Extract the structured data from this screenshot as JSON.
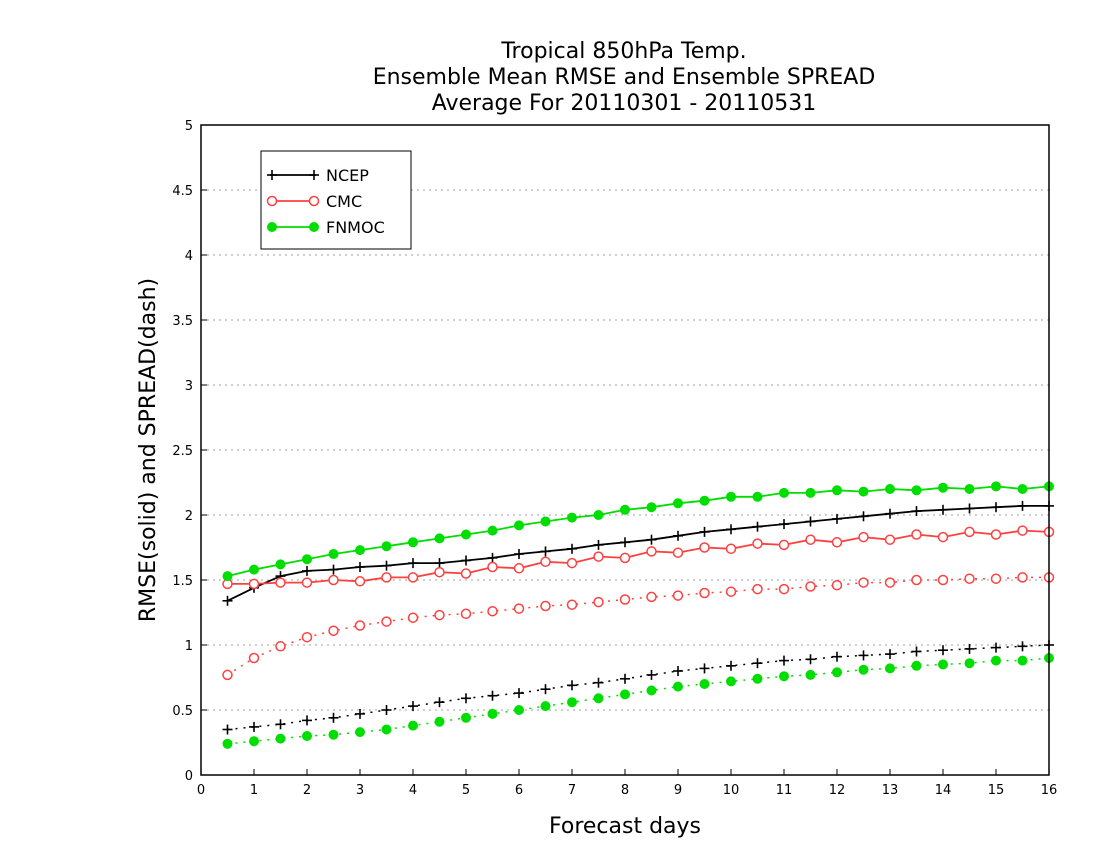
{
  "chart_data": {
    "type": "line",
    "title_lines": [
      "Tropical 850hPa Temp.",
      "Ensemble Mean RMSE and Ensemble SPREAD",
      "Average For 20110301 - 20110531"
    ],
    "xlabel": "Forecast days",
    "ylabel": "RMSE(solid) and SPREAD(dash)",
    "xlim": [
      0,
      16
    ],
    "ylim": [
      0,
      5
    ],
    "xticks": [
      0,
      1,
      2,
      3,
      4,
      5,
      6,
      7,
      8,
      9,
      10,
      11,
      12,
      13,
      14,
      15,
      16
    ],
    "xtick_labels": [
      "0",
      "1",
      "2",
      "3",
      "4",
      "5",
      "6",
      "7",
      "8",
      "9",
      "10",
      "11",
      "12",
      "13",
      "14",
      "15",
      "16"
    ],
    "yticks": [
      0,
      0.5,
      1,
      1.5,
      2,
      2.5,
      3,
      3.5,
      4,
      4.5,
      5
    ],
    "ytick_labels": [
      "0",
      "0.5",
      "1",
      "1.5",
      "2",
      "2.5",
      "3",
      "3.5",
      "4",
      "4.5",
      "5"
    ],
    "grid": "horizontal dotted",
    "legend_position": "top-left",
    "x": [
      0.5,
      1,
      1.5,
      2,
      2.5,
      3,
      3.5,
      4,
      4.5,
      5,
      5.5,
      6,
      6.5,
      7,
      7.5,
      8,
      8.5,
      9,
      9.5,
      10,
      10.5,
      11,
      11.5,
      12,
      12.5,
      13,
      13.5,
      14,
      14.5,
      15,
      15.5,
      16
    ],
    "series": [
      {
        "name": "NCEP",
        "color": "#000000",
        "marker": "plus",
        "rmse": [
          1.34,
          1.44,
          1.53,
          1.57,
          1.58,
          1.6,
          1.61,
          1.63,
          1.63,
          1.65,
          1.67,
          1.7,
          1.72,
          1.74,
          1.77,
          1.79,
          1.81,
          1.84,
          1.87,
          1.89,
          1.91,
          1.93,
          1.95,
          1.97,
          1.99,
          2.01,
          2.03,
          2.04,
          2.05,
          2.06,
          2.07,
          2.07
        ],
        "spread": [
          0.35,
          0.37,
          0.39,
          0.42,
          0.44,
          0.47,
          0.5,
          0.53,
          0.56,
          0.59,
          0.61,
          0.63,
          0.66,
          0.69,
          0.71,
          0.74,
          0.77,
          0.8,
          0.82,
          0.84,
          0.86,
          0.88,
          0.89,
          0.91,
          0.92,
          0.93,
          0.95,
          0.96,
          0.97,
          0.98,
          0.99,
          1.0
        ]
      },
      {
        "name": "CMC",
        "color": "#ff4040",
        "marker": "circle-open",
        "rmse": [
          1.47,
          1.47,
          1.48,
          1.48,
          1.5,
          1.49,
          1.52,
          1.52,
          1.56,
          1.55,
          1.6,
          1.59,
          1.64,
          1.63,
          1.68,
          1.67,
          1.72,
          1.71,
          1.75,
          1.74,
          1.78,
          1.77,
          1.81,
          1.79,
          1.83,
          1.81,
          1.85,
          1.83,
          1.87,
          1.85,
          1.88,
          1.87
        ],
        "spread": [
          0.77,
          0.9,
          0.99,
          1.06,
          1.11,
          1.15,
          1.18,
          1.21,
          1.23,
          1.24,
          1.26,
          1.28,
          1.3,
          1.31,
          1.33,
          1.35,
          1.37,
          1.38,
          1.4,
          1.41,
          1.43,
          1.43,
          1.45,
          1.46,
          1.48,
          1.48,
          1.5,
          1.5,
          1.51,
          1.51,
          1.52,
          1.52
        ]
      },
      {
        "name": "FNMOC",
        "color": "#00dd00",
        "marker": "circle-filled",
        "rmse": [
          1.53,
          1.58,
          1.62,
          1.66,
          1.7,
          1.73,
          1.76,
          1.79,
          1.82,
          1.85,
          1.88,
          1.92,
          1.95,
          1.98,
          2.0,
          2.04,
          2.06,
          2.09,
          2.11,
          2.14,
          2.14,
          2.17,
          2.17,
          2.19,
          2.18,
          2.2,
          2.19,
          2.21,
          2.2,
          2.22,
          2.2,
          2.22
        ],
        "spread": [
          0.24,
          0.26,
          0.28,
          0.3,
          0.31,
          0.33,
          0.35,
          0.38,
          0.41,
          0.44,
          0.47,
          0.5,
          0.53,
          0.56,
          0.59,
          0.62,
          0.65,
          0.68,
          0.7,
          0.72,
          0.74,
          0.76,
          0.77,
          0.79,
          0.81,
          0.82,
          0.84,
          0.85,
          0.86,
          0.88,
          0.88,
          0.9
        ]
      }
    ]
  }
}
